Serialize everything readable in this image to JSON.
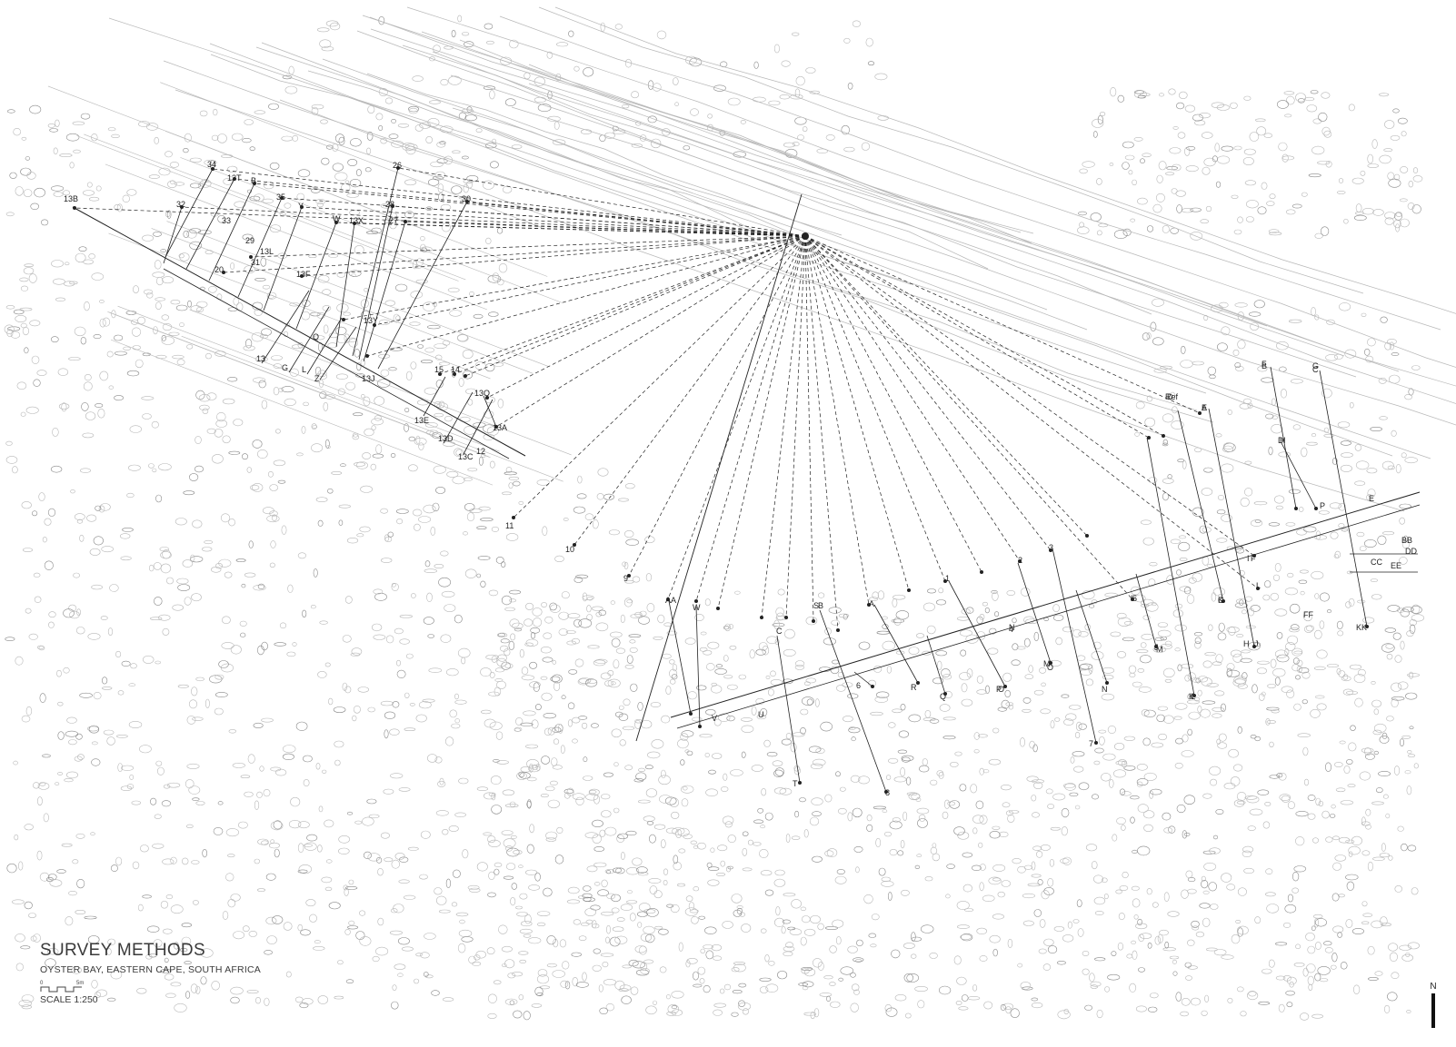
{
  "legend": {
    "title": "SURVEY METHODS",
    "subtitle": "OYSTER BAY, EASTERN CAPE, SOUTH AFRICA",
    "scale_label": "SCALE 1:250",
    "scale_bar_start": "0",
    "scale_bar_end": "5m"
  },
  "north_arrow": {
    "letter": "N"
  },
  "colors": {
    "linework": "#222222",
    "texture": "#b8b8b8",
    "texture_dark": "#8a8a8a",
    "background": "#ffffff"
  },
  "station_labels": {
    "west_group": [
      "13B",
      "32",
      "34",
      "13T",
      "B",
      "35",
      "Y",
      "W",
      "13X",
      "29",
      "28",
      "27",
      "26",
      "30",
      "13Q",
      "13A",
      "12",
      "13C",
      "13D",
      "13E",
      "15",
      "14",
      "13",
      "G",
      "L",
      "Z",
      "13J",
      "13F",
      "20",
      "33",
      "31",
      "Q",
      "13Y",
      "13L"
    ],
    "center_fan": [
      "11",
      "10",
      "9",
      "AA",
      "W",
      "V",
      "U",
      "T",
      "S",
      "R",
      "Q",
      "P",
      "O",
      "N",
      "M",
      "L",
      "K",
      "J",
      "I",
      "H",
      "G",
      "F",
      "E",
      "D",
      "C",
      "B",
      "A",
      "1",
      "2",
      "3",
      "4",
      "5",
      "6",
      "7",
      "8"
    ],
    "east_group": [
      "Ref",
      "A",
      "B",
      "C",
      "D",
      "E",
      "F",
      "G",
      "H",
      "I",
      "J",
      "K",
      "L",
      "M",
      "N",
      "O",
      "P",
      "BB",
      "CC",
      "DD",
      "EE",
      "FF",
      "KK",
      "AA"
    ]
  }
}
